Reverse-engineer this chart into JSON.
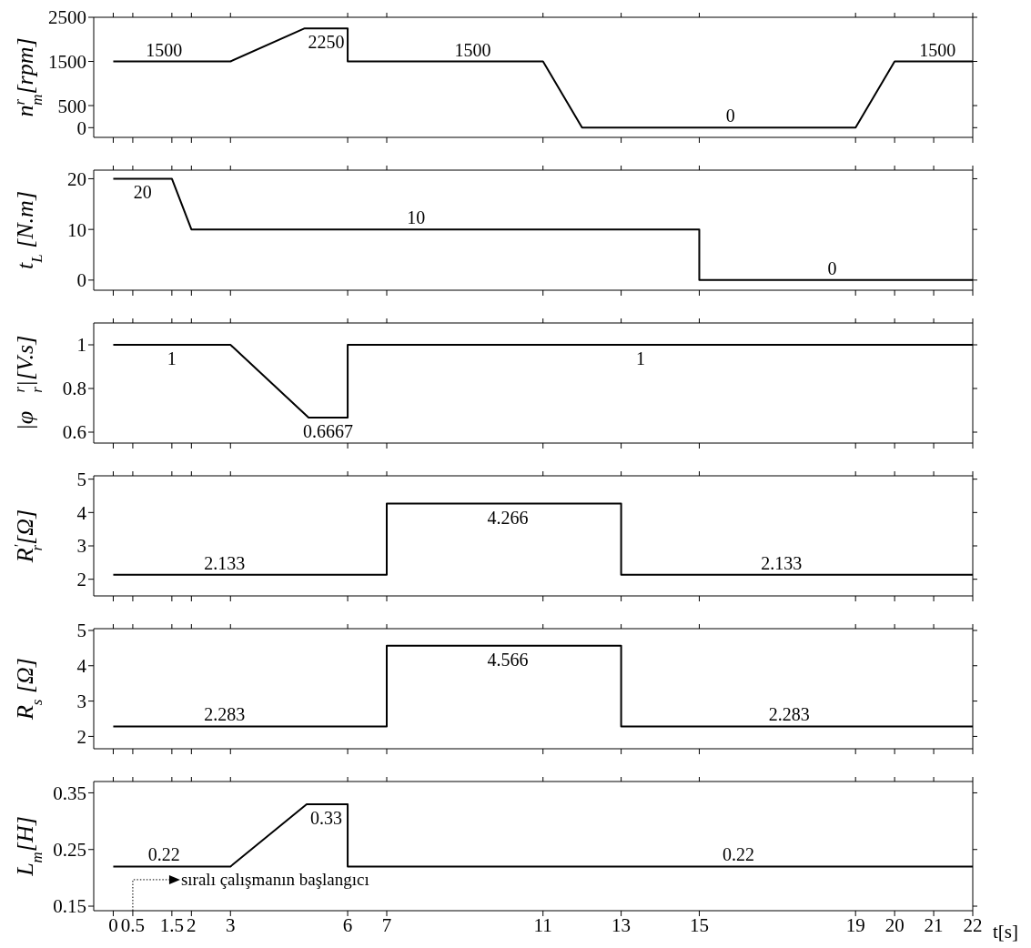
{
  "chart_data": [
    {
      "type": "line",
      "ylabel": "n$^{r}$$_{m}$[rpm]",
      "x": [
        0,
        3,
        4.9,
        6,
        6,
        11,
        12,
        19,
        20,
        22
      ],
      "values": [
        1500,
        1500,
        2250,
        2250,
        1500,
        1500,
        0,
        0,
        1500,
        1500
      ],
      "color": "#000000",
      "xlim": [
        -0.5,
        22
      ],
      "xticks": [
        0,
        0.5,
        1.5,
        2,
        3,
        6,
        7,
        11,
        13,
        15,
        19,
        20,
        21,
        22
      ],
      "ylim": [
        -220,
        2500
      ],
      "yticks": [
        0,
        500,
        1500,
        2500
      ],
      "tick_labels": "y",
      "annotations": [
        {
          "text": "1500",
          "x": 1.3,
          "y": 1500
        },
        {
          "text": "2250",
          "x": 5.45,
          "y": 2250
        },
        {
          "text": "1500",
          "x": 9.2,
          "y": 1500
        },
        {
          "text": "0",
          "x": 15.8,
          "y": 0
        },
        {
          "text": "1500",
          "x": 21.1,
          "y": 1500
        }
      ]
    },
    {
      "type": "line",
      "ylabel": "t$_{L}$ [N.m]",
      "x": [
        0,
        1.5,
        2,
        15,
        15,
        22
      ],
      "values": [
        20,
        20,
        10,
        10,
        0,
        0
      ],
      "color": "#000000",
      "xlim": [
        -0.5,
        22
      ],
      "xticks": [
        0,
        0.5,
        1.5,
        2,
        3,
        6,
        7,
        11,
        13,
        15,
        19,
        20,
        21,
        22
      ],
      "ylim": [
        -2,
        21.7
      ],
      "yticks": [
        0,
        10,
        20
      ],
      "tick_labels": "y",
      "annotations": [
        {
          "text": "20",
          "x": 0.75,
          "y": 20
        },
        {
          "text": "10",
          "x": 7.75,
          "y": 10
        },
        {
          "text": "0",
          "x": 18.4,
          "y": 0
        }
      ]
    },
    {
      "type": "line",
      "ylabel": "|φ⃗$^{r}$$_{r}$|[V.s]",
      "x": [
        0,
        3,
        5,
        6,
        6,
        22
      ],
      "values": [
        1,
        1,
        0.6667,
        0.6667,
        1,
        1
      ],
      "color": "#000000",
      "xlim": [
        -0.5,
        22
      ],
      "xticks": [
        0,
        0.5,
        1.5,
        2,
        3,
        6,
        7,
        11,
        13,
        15,
        19,
        20,
        21,
        22
      ],
      "ylim": [
        0.55,
        1.1
      ],
      "yticks": [
        0.6,
        0.8,
        1
      ],
      "tick_labels": "y",
      "annotations": [
        {
          "text": "1",
          "x": 1.5,
          "y": 1
        },
        {
          "text": "0.6667",
          "x": 5.5,
          "y": 0.6667
        },
        {
          "text": "1",
          "x": 13.5,
          "y": 1
        }
      ]
    },
    {
      "type": "line",
      "ylabel": "R$^{'}$$_{r}$[Ω]",
      "x": [
        0,
        7,
        7,
        13,
        13,
        22
      ],
      "values": [
        2.133,
        2.133,
        4.266,
        4.266,
        2.133,
        2.133
      ],
      "color": "#000000",
      "xlim": [
        -0.5,
        22
      ],
      "xticks": [
        0,
        0.5,
        1.5,
        2,
        3,
        6,
        7,
        11,
        13,
        15,
        19,
        20,
        21,
        22
      ],
      "ylim": [
        1.5,
        5.1
      ],
      "yticks": [
        2,
        3,
        4,
        5
      ],
      "tick_labels": "y",
      "annotations": [
        {
          "text": "2.133",
          "x": 2.85,
          "y": 2.133
        },
        {
          "text": "4.266",
          "x": 10.1,
          "y": 4.266
        },
        {
          "text": "2.133",
          "x": 17.1,
          "y": 2.133
        }
      ]
    },
    {
      "type": "line",
      "ylabel": "R$_{s}$ [Ω]",
      "x": [
        0,
        7,
        7,
        13,
        13,
        22
      ],
      "values": [
        2.283,
        2.283,
        4.566,
        4.566,
        2.283,
        2.283
      ],
      "color": "#000000",
      "xlim": [
        -0.5,
        22
      ],
      "xticks": [
        0,
        0.5,
        1.5,
        2,
        3,
        6,
        7,
        11,
        13,
        15,
        19,
        20,
        21,
        22
      ],
      "ylim": [
        1.65,
        5.05
      ],
      "yticks": [
        2,
        3,
        4,
        5
      ],
      "tick_labels": "y",
      "annotations": [
        {
          "text": "2.283",
          "x": 2.85,
          "y": 2.283
        },
        {
          "text": "4.566",
          "x": 10.1,
          "y": 4.566
        },
        {
          "text": "2.283",
          "x": 17.3,
          "y": 2.283
        }
      ]
    },
    {
      "type": "line",
      "ylabel": "L$_{m}$[H]",
      "xlabel": "t[s]",
      "x": [
        0,
        3,
        4.95,
        6,
        6,
        22
      ],
      "values": [
        0.22,
        0.22,
        0.33,
        0.33,
        0.22,
        0.22
      ],
      "color": "#000000",
      "xlim": [
        -0.5,
        22
      ],
      "xticks": [
        0,
        0.5,
        1.5,
        2,
        3,
        6,
        7,
        11,
        13,
        15,
        19,
        20,
        21,
        22
      ],
      "ylim": [
        0.142,
        0.37
      ],
      "yticks": [
        0.15,
        0.25,
        0.35
      ],
      "ref_lines": [
        {
          "axis": "x",
          "value": 0.5,
          "label": "sıralı çalışmanın başlangıcı",
          "line_style": "dotted"
        }
      ],
      "annotations": [
        {
          "text": "0.22",
          "x": 1.3,
          "y": 0.22
        },
        {
          "text": "0.33",
          "x": 5.45,
          "y": 0.33
        },
        {
          "text": "0.22",
          "x": 16,
          "y": 0.22
        }
      ]
    }
  ]
}
